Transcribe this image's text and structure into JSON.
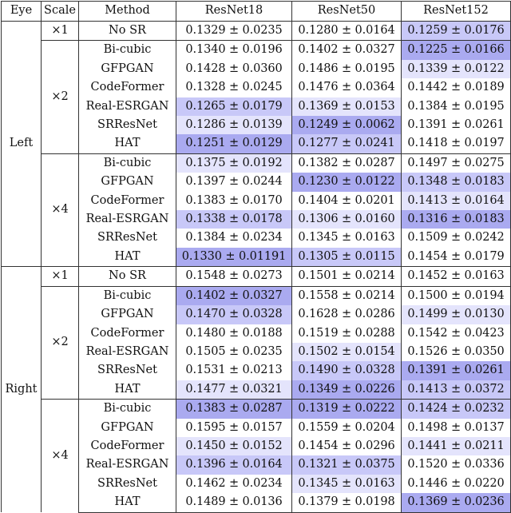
{
  "headers": {
    "eye": "Eye",
    "scale": "Scale",
    "method": "Method",
    "resnet18": "ResNet18",
    "resnet50": "ResNet50",
    "resnet152": "ResNet152"
  },
  "shade_colors": {
    "light": "#e4e4fc",
    "medium": "#c8c8f8",
    "dark": "#aaaaf0"
  },
  "eyes": [
    {
      "label": "Left",
      "groups": [
        {
          "scale": "×1",
          "rows": [
            {
              "method": "No SR",
              "r18": "0.1329 ± 0.0235",
              "r50": "0.1280 ± 0.0164",
              "r152": "0.1259 ± 0.0176",
              "shade": [
                "",
                "",
                "medium"
              ]
            }
          ]
        },
        {
          "scale": "×2",
          "rows": [
            {
              "method": "Bi-cubic",
              "r18": "0.1340 ± 0.0196",
              "r50": "0.1402 ± 0.0327",
              "r152": "0.1225 ± 0.0166",
              "shade": [
                "",
                "",
                "dark"
              ]
            },
            {
              "method": "GFPGAN",
              "r18": "0.1428 ± 0.0360",
              "r50": "0.1486 ± 0.0195",
              "r152": "0.1339 ± 0.0122",
              "shade": [
                "",
                "",
                "light"
              ]
            },
            {
              "method": "CodeFormer",
              "r18": "0.1328 ± 0.0245",
              "r50": "0.1476 ± 0.0364",
              "r152": "0.1442 ± 0.0189",
              "shade": [
                "",
                "",
                ""
              ]
            },
            {
              "method": "Real-ESRGAN",
              "r18": "0.1265 ± 0.0179",
              "r50": "0.1369 ± 0.0153",
              "r152": "0.1384 ± 0.0195",
              "shade": [
                "medium",
                "light",
                ""
              ]
            },
            {
              "method": "SRResNet",
              "r18": "0.1286 ± 0.0139",
              "r50": "0.1249 ± 0.0062",
              "r152": "0.1391 ± 0.0261",
              "shade": [
                "light",
                "dark",
                ""
              ]
            },
            {
              "method": "HAT",
              "r18": "0.1251 ± 0.0129",
              "r50": "0.1277 ± 0.0241",
              "r152": "0.1418 ± 0.0197",
              "shade": [
                "dark",
                "medium",
                ""
              ]
            }
          ]
        },
        {
          "scale": "×4",
          "rows": [
            {
              "method": "Bi-cubic",
              "r18": "0.1375 ± 0.0192",
              "r50": "0.1382 ± 0.0287",
              "r152": "0.1497 ± 0.0275",
              "shade": [
                "light",
                "",
                ""
              ]
            },
            {
              "method": "GFPGAN",
              "r18": "0.1397 ± 0.0244",
              "r50": "0.1230 ± 0.0122",
              "r152": "0.1348 ± 0.0183",
              "shade": [
                "",
                "dark",
                "medium"
              ]
            },
            {
              "method": "CodeFormer",
              "r18": "0.1383 ± 0.0170",
              "r50": "0.1404 ± 0.0201",
              "r152": "0.1413 ± 0.0164",
              "shade": [
                "",
                "",
                "light"
              ]
            },
            {
              "method": "Real-ESRGAN",
              "r18": "0.1338 ± 0.0178",
              "r50": "0.1306 ± 0.0160",
              "r152": "0.1316 ± 0.0183",
              "shade": [
                "medium",
                "light",
                "dark"
              ]
            },
            {
              "method": "SRResNet",
              "r18": "0.1384 ± 0.0234",
              "r50": "0.1345 ± 0.0163",
              "r152": "0.1509 ± 0.0242",
              "shade": [
                "",
                "",
                ""
              ]
            },
            {
              "method": "HAT",
              "r18": "0.1330 ± 0.01191",
              "r50": "0.1305 ± 0.0115",
              "r152": "0.1454 ± 0.0179",
              "shade": [
                "dark",
                "medium",
                ""
              ]
            }
          ]
        }
      ]
    },
    {
      "label": "Right",
      "groups": [
        {
          "scale": "×1",
          "rows": [
            {
              "method": "No SR",
              "r18": "0.1548 ± 0.0273",
              "r50": "0.1501 ± 0.0214",
              "r152": "0.1452 ± 0.0163",
              "shade": [
                "",
                "",
                ""
              ]
            }
          ]
        },
        {
          "scale": "×2",
          "rows": [
            {
              "method": "Bi-cubic",
              "r18": "0.1402 ± 0.0327",
              "r50": "0.1558 ± 0.0214",
              "r152": "0.1500 ± 0.0194",
              "shade": [
                "dark",
                "",
                ""
              ]
            },
            {
              "method": "GFPGAN",
              "r18": "0.1470 ± 0.0328",
              "r50": "0.1628 ± 0.0286",
              "r152": "0.1499 ± 0.0130",
              "shade": [
                "medium",
                "",
                "light"
              ]
            },
            {
              "method": "CodeFormer",
              "r18": "0.1480 ± 0.0188",
              "r50": "0.1519 ± 0.0288",
              "r152": "0.1542 ± 0.0423",
              "shade": [
                "",
                "",
                ""
              ]
            },
            {
              "method": "Real-ESRGAN",
              "r18": "0.1505 ± 0.0235",
              "r50": "0.1502 ± 0.0154",
              "r152": "0.1526 ± 0.0350",
              "shade": [
                "",
                "light",
                ""
              ]
            },
            {
              "method": "SRResNet",
              "r18": "0.1531 ± 0.0213",
              "r50": "0.1490 ± 0.0328",
              "r152": "0.1391 ± 0.0261",
              "shade": [
                "",
                "medium",
                "dark"
              ]
            },
            {
              "method": "HAT",
              "r18": "0.1477 ± 0.0321",
              "r50": "0.1349 ± 0.0226",
              "r152": "0.1413 ± 0.0372",
              "shade": [
                "light",
                "dark",
                "medium"
              ]
            }
          ]
        },
        {
          "scale": "×4",
          "rows": [
            {
              "method": "Bi-cubic",
              "r18": "0.1383 ± 0.0287",
              "r50": "0.1319 ± 0.0222",
              "r152": "0.1424 ± 0.0232",
              "shade": [
                "dark",
                "dark",
                "medium"
              ]
            },
            {
              "method": "GFPGAN",
              "r18": "0.1595 ± 0.0157",
              "r50": "0.1559 ± 0.0204",
              "r152": "0.1498 ± 0.0137",
              "shade": [
                "",
                "",
                ""
              ]
            },
            {
              "method": "CodeFormer",
              "r18": "0.1450 ± 0.0152",
              "r50": "0.1454 ± 0.0296",
              "r152": "0.1441 ± 0.0211",
              "shade": [
                "light",
                "",
                "light"
              ]
            },
            {
              "method": "Real-ESRGAN",
              "r18": "0.1396 ± 0.0164",
              "r50": "0.1321 ± 0.0375",
              "r152": "0.1520 ± 0.0336",
              "shade": [
                "medium",
                "medium",
                ""
              ]
            },
            {
              "method": "SRResNet",
              "r18": "0.1462 ± 0.0234",
              "r50": "0.1345 ± 0.0163",
              "r152": "0.1446 ± 0.0220",
              "shade": [
                "",
                "light",
                ""
              ]
            },
            {
              "method": "HAT",
              "r18": "0.1489 ± 0.0136",
              "r50": "0.1379 ± 0.0198",
              "r152": "0.1369 ± 0.0236",
              "shade": [
                "",
                "",
                "dark"
              ]
            }
          ]
        }
      ]
    }
  ]
}
